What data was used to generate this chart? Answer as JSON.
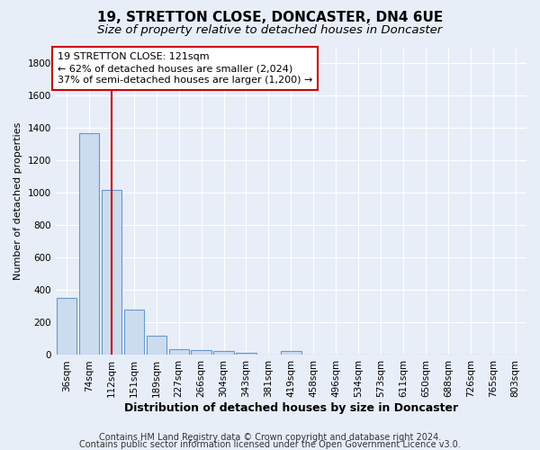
{
  "title": "19, STRETTON CLOSE, DONCASTER, DN4 6UE",
  "subtitle": "Size of property relative to detached houses in Doncaster",
  "xlabel": "Distribution of detached houses by size in Doncaster",
  "ylabel": "Number of detached properties",
  "footer_line1": "Contains HM Land Registry data © Crown copyright and database right 2024.",
  "footer_line2": "Contains public sector information licensed under the Open Government Licence v3.0.",
  "bin_labels": [
    "36sqm",
    "74sqm",
    "112sqm",
    "151sqm",
    "189sqm",
    "227sqm",
    "266sqm",
    "304sqm",
    "343sqm",
    "381sqm",
    "419sqm",
    "458sqm",
    "496sqm",
    "534sqm",
    "573sqm",
    "611sqm",
    "650sqm",
    "688sqm",
    "726sqm",
    "765sqm",
    "803sqm"
  ],
  "bar_values": [
    350,
    1370,
    1020,
    280,
    120,
    38,
    32,
    22,
    15,
    0,
    22,
    0,
    0,
    0,
    0,
    0,
    0,
    0,
    0,
    0,
    0
  ],
  "bar_color": "#ccdcef",
  "bar_edge_color": "#6699cc",
  "property_bin_index": 2,
  "red_line_color": "#cc0000",
  "annotation_line1": "19 STRETTON CLOSE: 121sqm",
  "annotation_line2": "← 62% of detached houses are smaller (2,024)",
  "annotation_line3": "37% of semi-detached houses are larger (1,200) →",
  "annotation_box_color": "#ffffff",
  "annotation_box_edge_color": "#cc0000",
  "ylim_max": 1900,
  "yticks": [
    0,
    200,
    400,
    600,
    800,
    1000,
    1200,
    1400,
    1600,
    1800
  ],
  "bg_color": "#e8eef8",
  "plot_bg_color": "#e8eef8",
  "grid_color": "#ffffff",
  "title_fontsize": 11,
  "subtitle_fontsize": 9.5,
  "ylabel_fontsize": 8,
  "xlabel_fontsize": 9,
  "tick_fontsize": 7.5,
  "annotation_fontsize": 8,
  "footer_fontsize": 7
}
